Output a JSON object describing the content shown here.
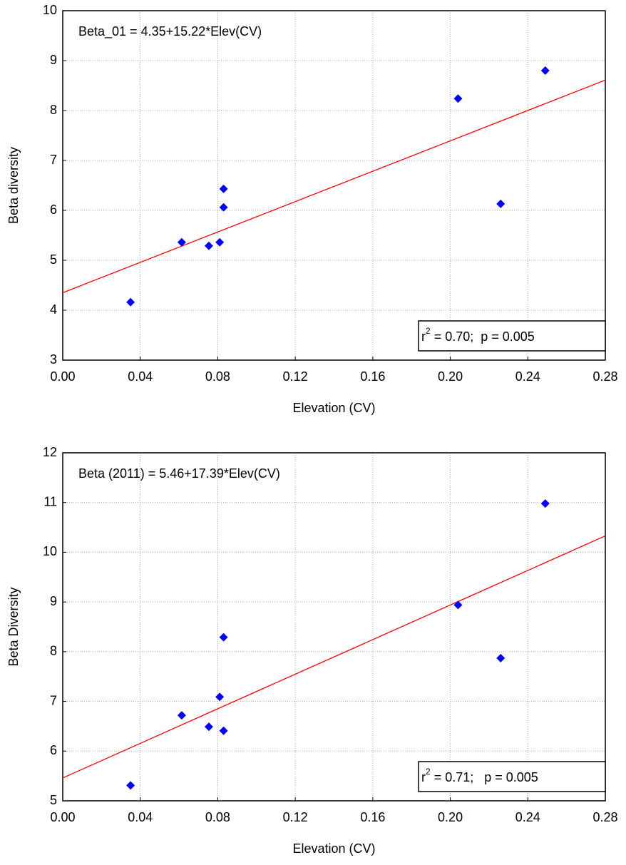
{
  "chart_data": [
    {
      "type": "scatter",
      "annotation": "Beta_01 = 4.35+15.22*Elev(CV)",
      "stats": {
        "r": "r",
        "exp": "2",
        "text": " = 0.70;  p = 0.005"
      },
      "x_label": "Elevation (CV)",
      "y_label": "Beta diversity",
      "series": [
        {
          "color": "#0000ff",
          "x": [
            0.035,
            0.0614,
            0.0754,
            0.081,
            0.083,
            0.083,
            0.204,
            0.226,
            0.249
          ],
          "values": [
            4.16,
            5.36,
            5.29,
            5.36,
            6.43,
            6.06,
            8.24,
            6.13,
            8.8
          ]
        }
      ],
      "trend": {
        "color": "#ff0000",
        "x": [
          0,
          0.28
        ],
        "values": [
          4.35,
          8.61
        ]
      },
      "xlim": [
        0,
        0.28
      ],
      "ylim": [
        3,
        10
      ],
      "xticks": [
        {
          "value": 0,
          "label": "0.00"
        },
        {
          "value": 0.04,
          "label": "0.04"
        },
        {
          "value": 0.08,
          "label": "0.08"
        },
        {
          "value": 0.12,
          "label": "0.12"
        },
        {
          "value": 0.16,
          "label": "0.16"
        },
        {
          "value": 0.2,
          "label": "0.20"
        },
        {
          "value": 0.24,
          "label": "0.24"
        },
        {
          "value": 0.28,
          "label": "0.28"
        }
      ],
      "yticks": [
        3,
        4,
        5,
        6,
        7,
        8,
        9,
        10
      ],
      "grid": true
    },
    {
      "type": "scatter",
      "annotation": "Beta (2011) = 5.46+17.39*Elev(CV)",
      "stats": {
        "r": "r",
        "exp": "2",
        "text": " = 0.71;   p = 0.005"
      },
      "x_label": "Elevation (CV)",
      "y_label": "Beta Diversity",
      "series": [
        {
          "color": "#0000ff",
          "x": [
            0.035,
            0.0614,
            0.0754,
            0.081,
            0.083,
            0.083,
            0.204,
            0.226,
            0.249
          ],
          "values": [
            5.31,
            6.72,
            6.49,
            7.09,
            8.29,
            6.41,
            8.94,
            7.87,
            10.98
          ]
        }
      ],
      "trend": {
        "color": "#ff0000",
        "x": [
          0,
          0.28
        ],
        "values": [
          5.46,
          10.33
        ]
      },
      "xlim": [
        0,
        0.28
      ],
      "ylim": [
        5,
        12
      ],
      "xticks": [
        {
          "value": 0,
          "label": "0.00"
        },
        {
          "value": 0.04,
          "label": "0.04"
        },
        {
          "value": 0.08,
          "label": "0.08"
        },
        {
          "value": 0.12,
          "label": "0.12"
        },
        {
          "value": 0.16,
          "label": "0.16"
        },
        {
          "value": 0.2,
          "label": "0.20"
        },
        {
          "value": 0.24,
          "label": "0.24"
        },
        {
          "value": 0.28,
          "label": "0.28"
        }
      ],
      "yticks": [
        5,
        6,
        7,
        8,
        9,
        10,
        11,
        12
      ],
      "grid": true
    }
  ]
}
